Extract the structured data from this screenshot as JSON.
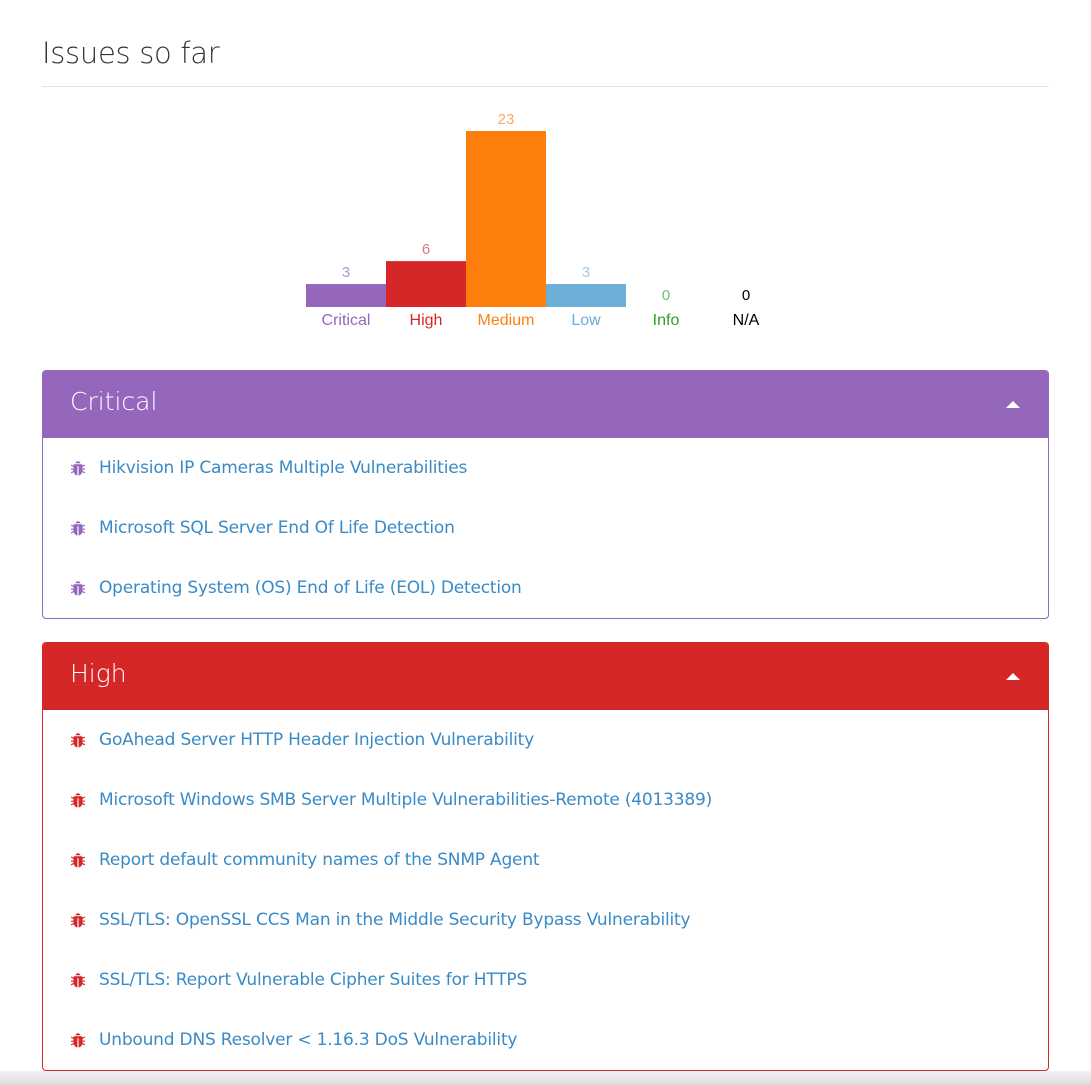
{
  "page": {
    "title": "Issues so far"
  },
  "chart_data": {
    "type": "bar",
    "categories": [
      "Critical",
      "High",
      "Medium",
      "Low",
      "Info",
      "N/A"
    ],
    "values": [
      3,
      6,
      23,
      3,
      0,
      0
    ],
    "colors": [
      "#9467bd",
      "#d62728",
      "#ff7f0e",
      "#6baed6",
      "#2ca02c",
      "#111111"
    ],
    "label_colors": [
      "#9467bd",
      "#d62728",
      "#ff7f0e",
      "#6baed6",
      "#2ca02c",
      "#000000"
    ],
    "value_label_colors": [
      "#b495d6",
      "#e4787a",
      "#ffa85a",
      "#9fcbe6",
      "#6fc06f",
      "#000000"
    ],
    "title": "",
    "xlabel": "",
    "ylabel": ""
  },
  "panels": [
    {
      "title": "Critical",
      "color": "#9467bd",
      "icon": "bug-icon",
      "items": [
        "Hikvision IP Cameras Multiple Vulnerabilities",
        "Microsoft SQL Server End Of Life Detection",
        "Operating System (OS) End of Life (EOL) Detection"
      ]
    },
    {
      "title": "High",
      "color": "#d62728",
      "icon": "bug-icon",
      "items": [
        "GoAhead Server HTTP Header Injection Vulnerability",
        "Microsoft Windows SMB Server Multiple Vulnerabilities-Remote (4013389)",
        "Report default community names of the SNMP Agent",
        "SSL/TLS: OpenSSL CCS Man in the Middle Security Bypass Vulnerability",
        "SSL/TLS: Report Vulnerable Cipher Suites for HTTPS",
        "Unbound DNS Resolver < 1.16.3 DoS Vulnerability"
      ]
    }
  ]
}
